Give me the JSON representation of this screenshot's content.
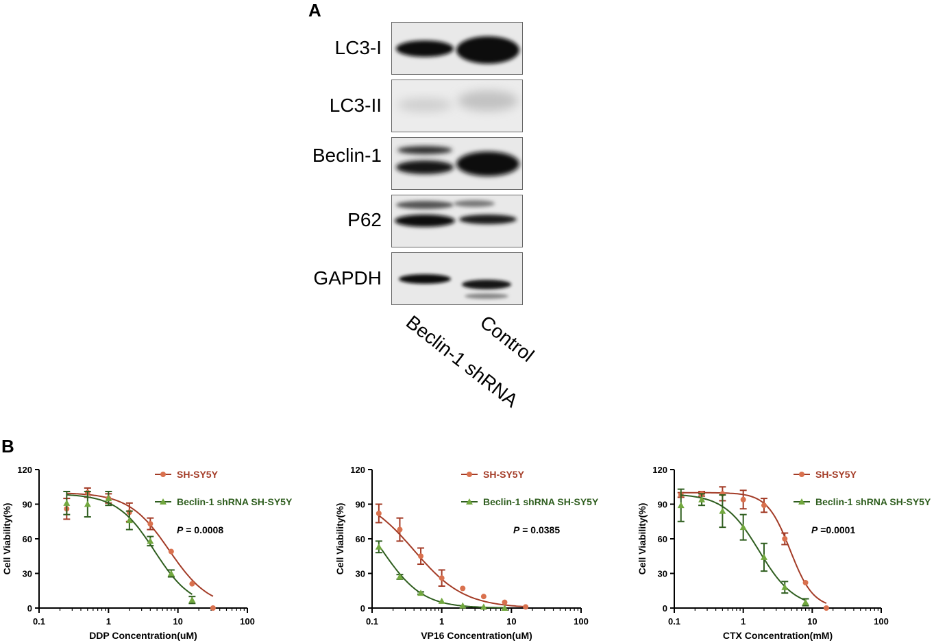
{
  "panel_a": {
    "letter": "A",
    "bands": [
      "LC3-I",
      "LC3-II",
      "Beclin-1",
      "P62",
      "GAPDH"
    ],
    "lanes": [
      "Beclin-1 shRNA",
      "Control"
    ]
  },
  "panel_b": {
    "letter": "B"
  },
  "colors": {
    "sh_sy5y": "#a33b26",
    "sh_sy5y_marker": "#d9714e",
    "beclin": "#2f5e1f",
    "beclin_marker": "#72a83f"
  },
  "chart_data": [
    {
      "type": "scatter",
      "xlabel": "DDP Concentration(uM)",
      "ylabel": "Cell Viability(%)",
      "x_scale": "log",
      "xlim": [
        0.1,
        100
      ],
      "ylim": [
        0,
        120
      ],
      "x_ticks": [
        "0.1",
        "1",
        "10",
        "100"
      ],
      "y_ticks": [
        "0",
        "30",
        "60",
        "90",
        "120"
      ],
      "annotation": {
        "italic": "P",
        "text": " = 0.0008"
      },
      "series": [
        {
          "name": "SH-SY5Y",
          "x": [
            0.25,
            0.5,
            1,
            2,
            4,
            8,
            16,
            32
          ],
          "y": [
            86,
            100,
            95,
            83,
            73,
            49,
            21,
            0
          ],
          "err": [
            9,
            4,
            4,
            8,
            5,
            0,
            0,
            0
          ],
          "fit_top": 100,
          "fit_ic50": 7.5,
          "fit_hill": 1.5
        },
        {
          "name": "Beclin-1 shRNA SH-SY5Y",
          "x": [
            0.25,
            0.5,
            1,
            2,
            4,
            8,
            16
          ],
          "y": [
            91,
            90,
            95,
            76,
            58,
            30,
            7
          ],
          "err": [
            10,
            11,
            6,
            8,
            4,
            3,
            3
          ],
          "fit_top": 99,
          "fit_ic50": 4.6,
          "fit_hill": 1.6
        }
      ]
    },
    {
      "type": "scatter",
      "xlabel": "VP16 Concentration(uM)",
      "ylabel": "Cell Viability(%)",
      "x_scale": "log",
      "xlim": [
        0.1,
        100
      ],
      "ylim": [
        0,
        120
      ],
      "x_ticks": [
        "0.1",
        "1",
        "10",
        "100"
      ],
      "y_ticks": [
        "0",
        "30",
        "60",
        "90",
        "120"
      ],
      "annotation": {
        "italic": "P",
        "text": " = 0.0385"
      },
      "series": [
        {
          "name": "SH-SY5Y",
          "x": [
            0.125,
            0.25,
            0.5,
            1,
            2,
            4,
            8,
            16
          ],
          "y": [
            82,
            68,
            45,
            26,
            17,
            10,
            5,
            1
          ],
          "err": [
            8,
            10,
            7,
            7,
            0,
            0,
            0,
            0
          ],
          "fit_top": 100,
          "fit_ic50": 0.4,
          "fit_hill": 1.2
        },
        {
          "name": "Beclin-1 shRNA SH-SY5Y",
          "x": [
            0.125,
            0.25,
            0.5,
            1,
            2,
            4,
            8
          ],
          "y": [
            53,
            27,
            13,
            6,
            2,
            1,
            0
          ],
          "err": [
            5,
            2,
            1,
            0,
            0,
            0,
            0
          ],
          "fit_top": 100,
          "fit_ic50": 0.14,
          "fit_hill": 1.5
        }
      ]
    },
    {
      "type": "scatter",
      "xlabel": "CTX Concentration(mM)",
      "ylabel": "Cell Viability(%)",
      "x_scale": "log",
      "xlim": [
        0.1,
        100
      ],
      "ylim": [
        0,
        120
      ],
      "x_ticks": [
        "0.1",
        "1",
        "10",
        "100"
      ],
      "y_ticks": [
        "0",
        "30",
        "60",
        "90",
        "120"
      ],
      "annotation": {
        "italic": "P",
        "text": " =0.0001"
      },
      "series": [
        {
          "name": "SH-SY5Y",
          "x": [
            0.125,
            0.25,
            0.5,
            1,
            2,
            4,
            8,
            16
          ],
          "y": [
            98,
            99,
            99,
            94,
            89,
            60,
            22,
            0
          ],
          "err": [
            2,
            2,
            6,
            8,
            6,
            5,
            0,
            0
          ],
          "fit_top": 100,
          "fit_ic50": 4.8,
          "fit_hill": 2.6
        },
        {
          "name": "Beclin-1 shRNA SH-SY5Y",
          "x": [
            0.125,
            0.25,
            0.5,
            1,
            2,
            4,
            8
          ],
          "y": [
            89,
            94,
            84,
            70,
            44,
            18,
            5
          ],
          "err": [
            14,
            5,
            14,
            11,
            12,
            5,
            3
          ],
          "fit_top": 99,
          "fit_ic50": 1.7,
          "fit_hill": 1.7
        }
      ]
    }
  ]
}
